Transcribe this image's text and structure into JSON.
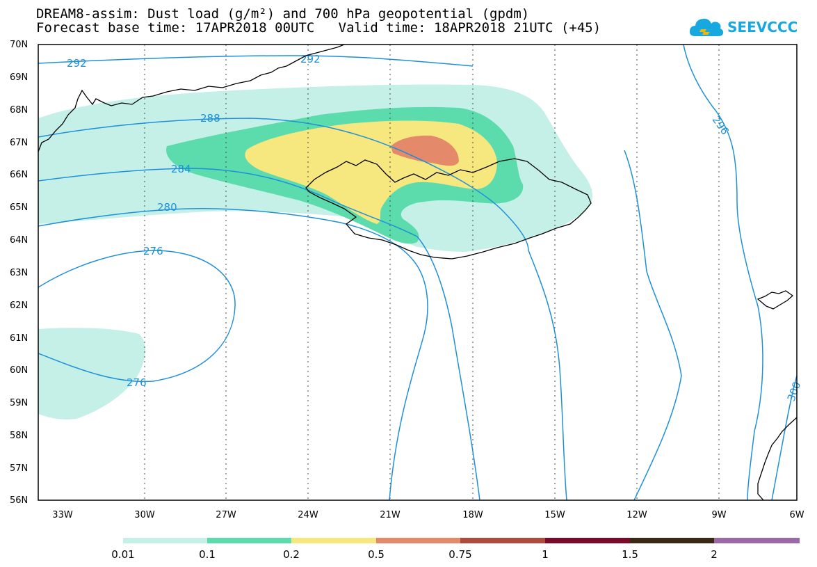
{
  "header": {
    "title_line1": "DREAM8-assim: Dust load (g/m²) and 700 hPa geopotential (gpdm)",
    "title_line2": "Forecast base time: 17APR2018 00UTC   Valid time: 18APR2018 21UTC (+45)"
  },
  "logo": {
    "text": "SEEVCCC",
    "icon": "cloud-icon",
    "color": "#18a8e0"
  },
  "map": {
    "lat_labels": [
      "70N",
      "69N",
      "68N",
      "67N",
      "66N",
      "65N",
      "64N",
      "63N",
      "62N",
      "61N",
      "60N",
      "59N",
      "58N",
      "57N",
      "56N"
    ],
    "lon_labels": [
      "33W",
      "30W",
      "27W",
      "24W",
      "21W",
      "18W",
      "15W",
      "12W",
      "9W",
      "6W"
    ],
    "lat_range": [
      56,
      70
    ],
    "lon_range": [
      -34.3,
      -6
    ],
    "grid": "dotted",
    "contour_color": "#1e90d8",
    "coast_color": "#000000",
    "contour_labels": [
      "292",
      "292",
      "288",
      "284",
      "280",
      "276",
      "276",
      "296",
      "300"
    ]
  },
  "legend": {
    "colors": [
      "#c4f0e8",
      "#5cdcac",
      "#f6e77e",
      "#e4896a",
      "#b04a3c",
      "#7a0a2a",
      "#3a2a14",
      "#9a6aa6"
    ],
    "labels": [
      "0.01",
      "0.1",
      "0.2",
      "0.5",
      "0.75",
      "1",
      "1.5",
      "2"
    ]
  }
}
